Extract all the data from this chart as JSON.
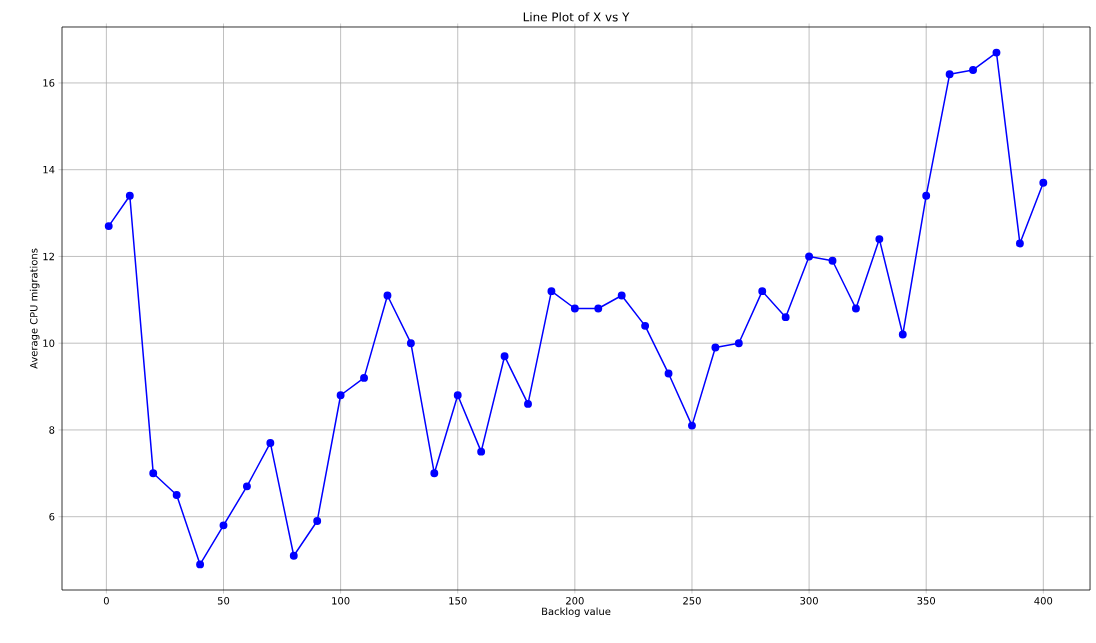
{
  "chart_data": {
    "type": "line",
    "title": "Line Plot of X vs Y",
    "xlabel": "Backlog value",
    "ylabel": "Average CPU migrations",
    "x": [
      1,
      10,
      20,
      30,
      40,
      50,
      60,
      70,
      80,
      90,
      100,
      110,
      120,
      130,
      140,
      150,
      160,
      170,
      180,
      190,
      200,
      210,
      220,
      230,
      240,
      250,
      260,
      270,
      280,
      290,
      300,
      310,
      320,
      330,
      340,
      350,
      360,
      370,
      380,
      390,
      400
    ],
    "series": [
      {
        "color": "#0000ff",
        "values": [
          12.7,
          13.4,
          7.0,
          6.5,
          4.9,
          5.8,
          6.7,
          7.7,
          5.1,
          5.9,
          8.8,
          9.2,
          11.1,
          10.0,
          7.0,
          8.8,
          7.5,
          9.7,
          8.6,
          11.2,
          10.8,
          10.8,
          11.1,
          10.4,
          9.3,
          8.1,
          9.9,
          10.0,
          11.2,
          10.6,
          12.0,
          11.9,
          10.8,
          12.4,
          10.2,
          13.4,
          16.2,
          16.3,
          16.7,
          12.3,
          13.7
        ]
      }
    ],
    "xlim": [
      -18.95,
      419.95
    ],
    "ylim": [
      4.31,
      17.29
    ],
    "xticks": [
      0,
      50,
      100,
      150,
      200,
      250,
      300,
      350,
      400
    ],
    "yticks": [
      6,
      8,
      10,
      12,
      14,
      16
    ],
    "grid": true,
    "marker": "circle",
    "line_style": "solid"
  }
}
